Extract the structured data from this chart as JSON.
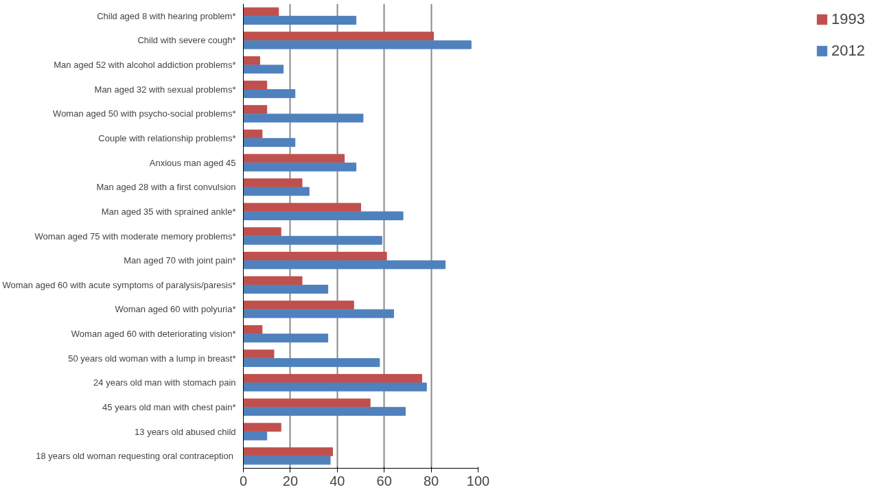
{
  "chart_data": {
    "type": "bar",
    "orientation": "horizontal",
    "categories": [
      "Child aged 8 with hearing problem*",
      "Child with severe cough*",
      "Man aged 52 with alcohol addiction problems*",
      "Man aged 32 with sexual problems*",
      "Woman aged 50 with psycho-social problems*",
      "Couple with relationship problems*",
      "Anxious man aged 45",
      "Man aged 28 with a first convulsion",
      "Man aged 35 with sprained ankle*",
      "Woman aged 75 with moderate memory problems*",
      "Man aged 70 with joint pain*",
      "Woman aged 60 with acute symptoms of paralysis/paresis*",
      "Woman aged 60 with polyuria*",
      "Woman aged 60 with deteriorating vision*",
      "50 years old woman with a lump in breast*",
      "24 years old man with stomach pain",
      "45 years old man with chest pain*",
      "13 years old abused child",
      "18 years old woman requesting  oral contraception"
    ],
    "series": [
      {
        "name": "1993",
        "color": "#c0504d",
        "values": [
          15,
          81,
          7,
          10,
          10,
          8,
          43,
          25,
          50,
          16,
          61,
          25,
          47,
          8,
          13,
          76,
          54,
          16,
          38
        ]
      },
      {
        "name": "2012",
        "color": "#4f81bd",
        "values": [
          48,
          97,
          17,
          22,
          51,
          22,
          48,
          28,
          68,
          59,
          86,
          36,
          64,
          36,
          58,
          78,
          69,
          10,
          37
        ]
      }
    ],
    "xlim": [
      0,
      100
    ],
    "xticks": [
      0,
      20,
      40,
      60,
      80,
      100
    ],
    "grid": "x",
    "legend": "right"
  }
}
